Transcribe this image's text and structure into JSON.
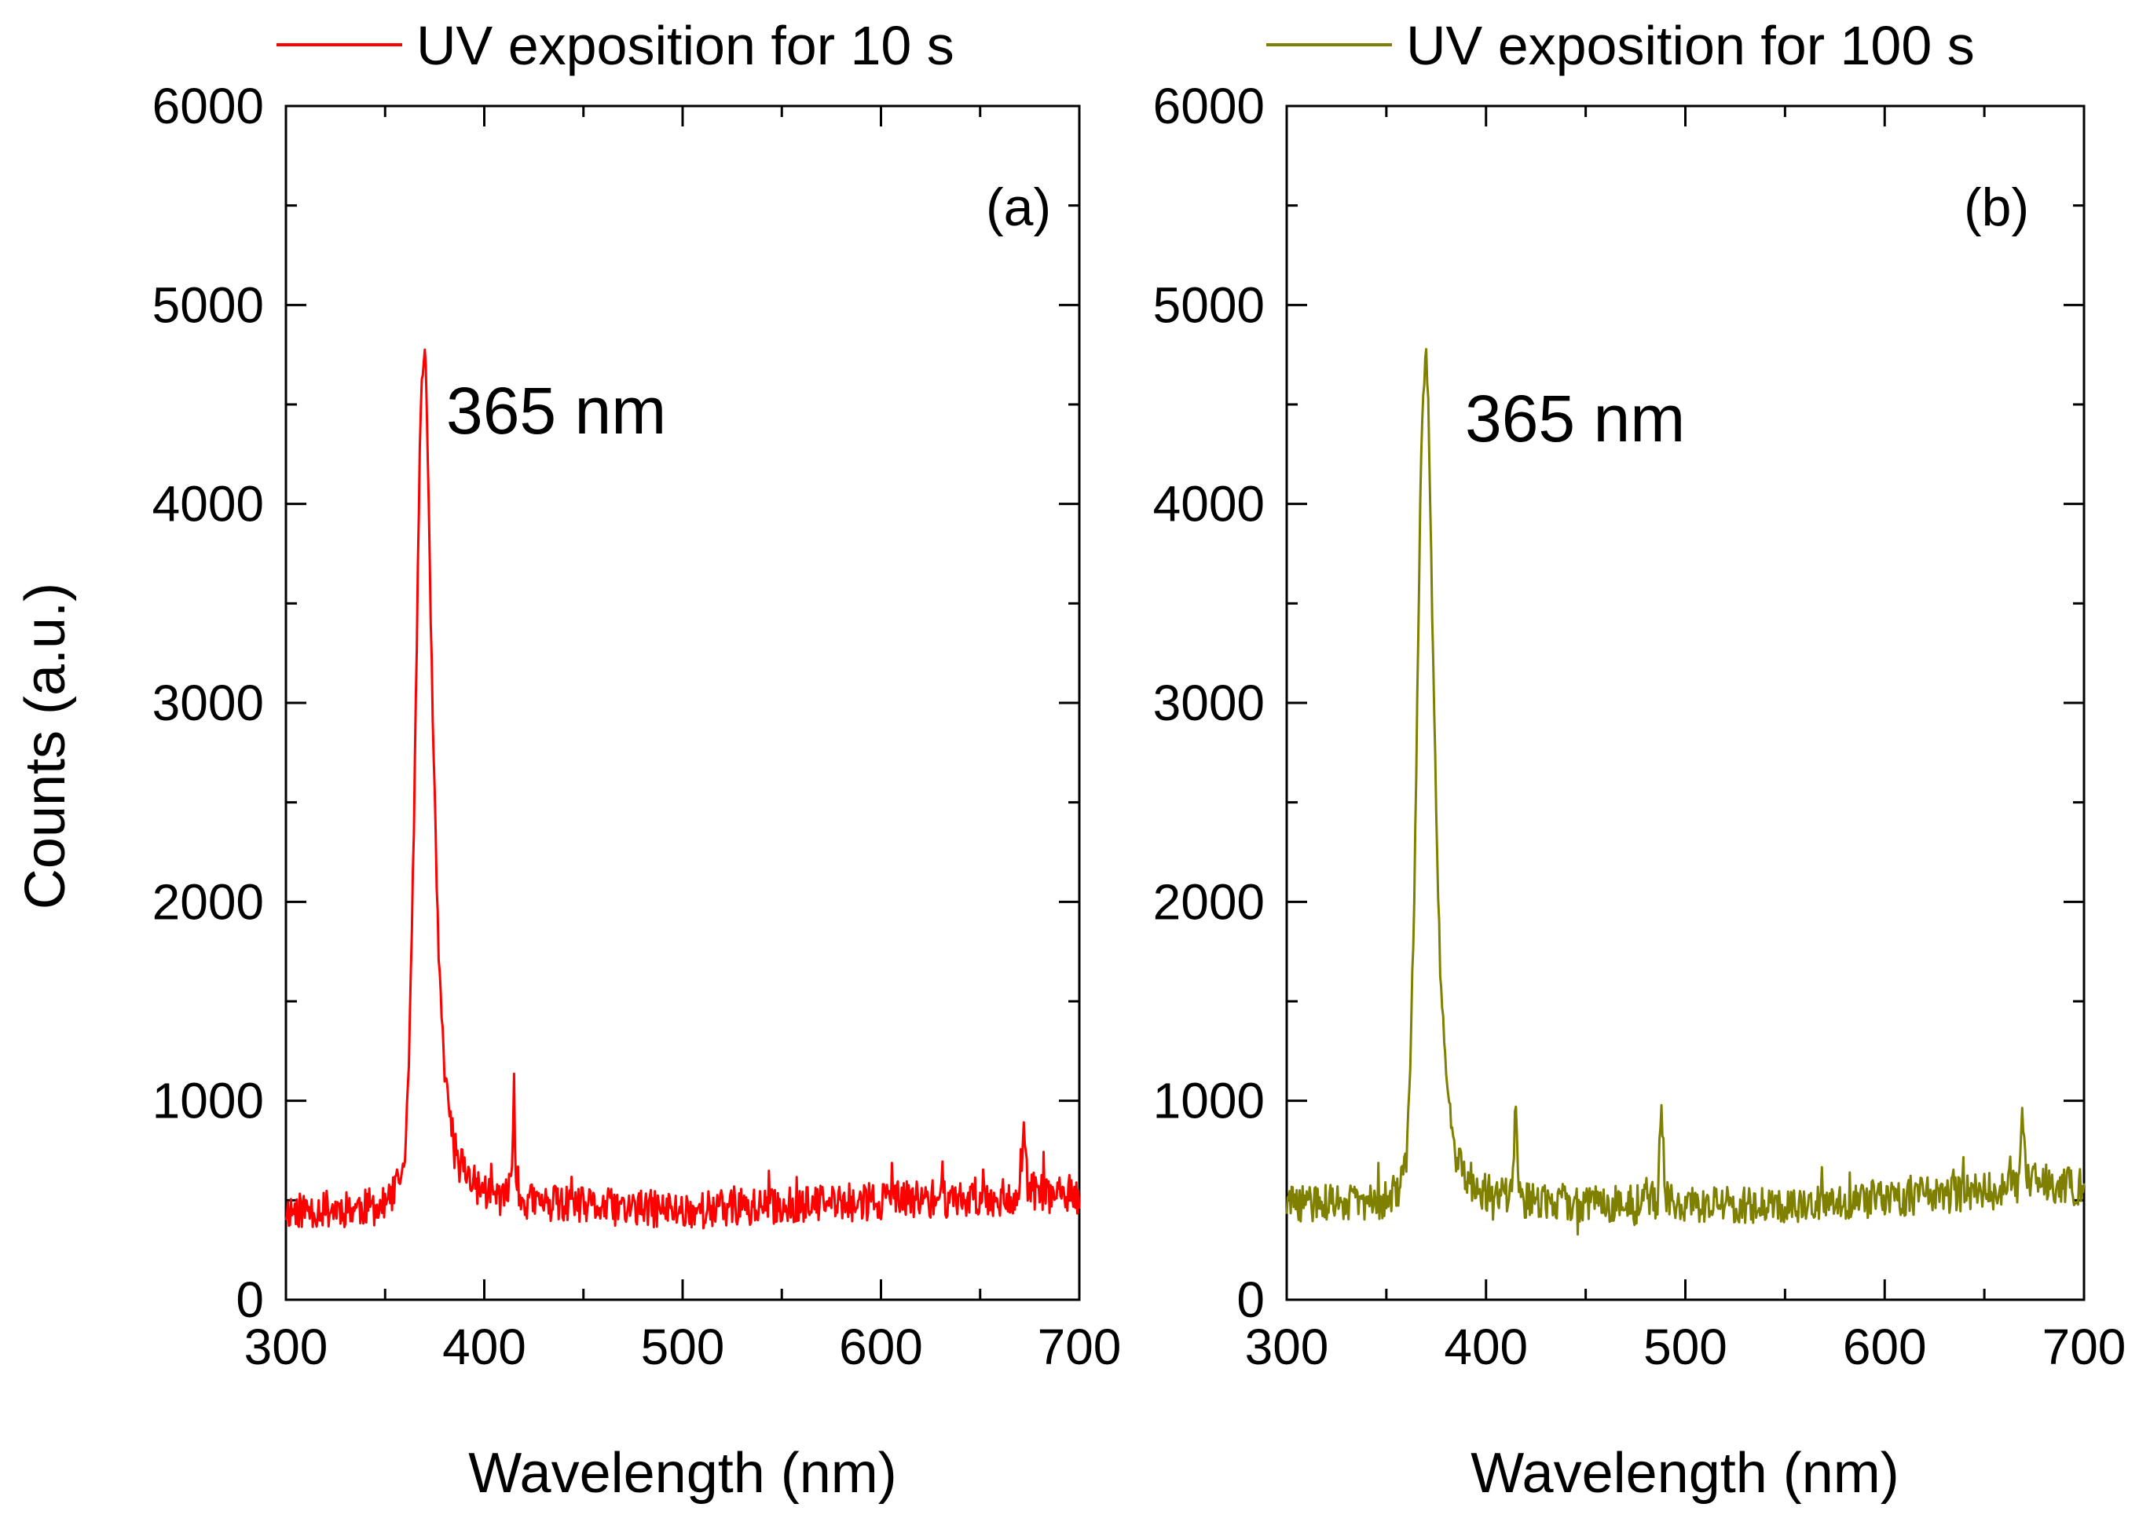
{
  "chart_data": {
    "shared_ylabel": "Counts (a.u.)",
    "panels": [
      {
        "type": "line",
        "panel_label": "(a)",
        "legend_label": "UV exposition for 10 s",
        "color": "#ff0000",
        "xlabel": "Wavelength (nm)",
        "ylabel": "Counts (a.u.)",
        "xlim": [
          300,
          700
        ],
        "ylim": [
          0,
          6000
        ],
        "xticks": [
          "300",
          "400",
          "500",
          "600",
          "700"
        ],
        "yticks": [
          "0",
          "1000",
          "2000",
          "3000",
          "4000",
          "5000",
          "6000"
        ],
        "annotation": "365 nm",
        "peak": {
          "x": 370,
          "y": 4780
        },
        "series": [
          {
            "name": "UV exposition for 10 s",
            "x": [
              300,
              330,
              350,
              356,
              360,
              362,
              364,
              366,
              367,
              368,
              369,
              370,
              371,
              372,
              373,
              375,
              377,
              380,
              385,
              395,
              405,
              412,
              414,
              415,
              416,
              418,
              425,
              450,
              500,
              550,
              600,
              650,
              670,
              672,
              674,
              700
            ],
            "y": [
              450,
              460,
              470,
              560,
              700,
              1200,
              2100,
              3300,
              4000,
              4450,
              4700,
              4780,
              4500,
              4000,
              3400,
              2500,
              1700,
              1150,
              750,
              580,
              520,
              520,
              700,
              1060,
              650,
              500,
              490,
              470,
              450,
              470,
              500,
              510,
              520,
              850,
              550,
              500
            ]
          }
        ]
      },
      {
        "type": "line",
        "panel_label": "(b)",
        "legend_label": "UV exposition for 100 s",
        "color": "#808000",
        "xlabel": "Wavelength (nm)",
        "ylabel": "Counts (a.u.)",
        "xlim": [
          300,
          700
        ],
        "ylim": [
          0,
          6000
        ],
        "xticks": [
          "300",
          "400",
          "500",
          "600",
          "700"
        ],
        "yticks": [
          "0",
          "1000",
          "2000",
          "3000",
          "4000",
          "5000",
          "6000"
        ],
        "annotation": "365 nm",
        "peak": {
          "x": 370,
          "y": 4720
        },
        "series": [
          {
            "name": "UV exposition for 100 s",
            "x": [
              300,
              330,
              350,
              356,
              360,
              362,
              364,
              366,
              367,
              368,
              369,
              370,
              371,
              372,
              373,
              375,
              377,
              380,
              385,
              395,
              405,
              412,
              414,
              415,
              416,
              418,
              450,
              486,
              488,
              490,
              500,
              550,
              600,
              650,
              667,
              669,
              671,
              700
            ],
            "y": [
              480,
              490,
              500,
              560,
              700,
              1150,
              2050,
              3300,
              4000,
              4450,
              4650,
              4720,
              4500,
              4000,
              3400,
              2500,
              1650,
              1100,
              720,
              560,
              520,
              520,
              700,
              1060,
              650,
              500,
              480,
              500,
              960,
              520,
              470,
              480,
              510,
              540,
              560,
              880,
              600,
              560
            ]
          }
        ]
      }
    ]
  }
}
